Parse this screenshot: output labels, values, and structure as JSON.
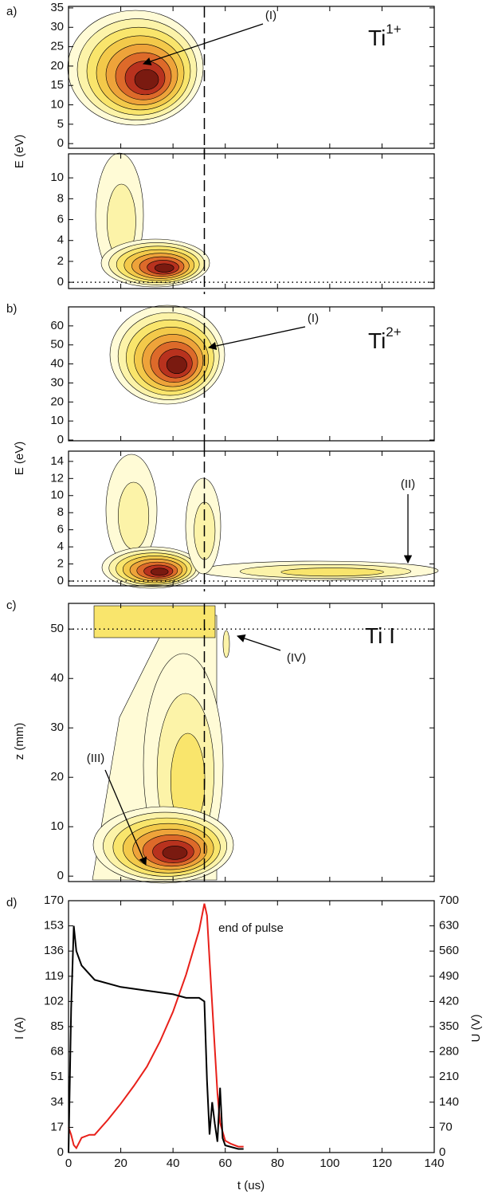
{
  "chart_data": [
    {
      "type": "contour",
      "panel_label": "a)",
      "xlim": [
        0,
        140
      ],
      "ylim": [
        -1.2,
        35.4
      ],
      "yticks": [
        0,
        5,
        10,
        15,
        20,
        25,
        30,
        35
      ],
      "vline": 52,
      "annotations": [
        "(I)"
      ],
      "species": {
        "text": "Ti",
        "sup": "1+"
      }
    },
    {
      "type": "contour",
      "ylabel": "E (eV)",
      "xlim": [
        0,
        140
      ],
      "ylim": [
        -0.6,
        12.3
      ],
      "yticks": [
        0,
        2,
        4,
        6,
        8,
        10
      ],
      "vline": 52,
      "hline": 0
    },
    {
      "type": "contour",
      "panel_label": "b)",
      "xlim": [
        0,
        140
      ],
      "ylim": [
        -0.4,
        70
      ],
      "yticks": [
        0,
        10,
        20,
        30,
        40,
        50,
        60
      ],
      "vline": 52,
      "annotations": [
        "(I)"
      ],
      "species": {
        "text": "Ti",
        "sup": "2+"
      }
    },
    {
      "type": "contour",
      "ylabel": "E (eV)",
      "xlim": [
        0,
        140
      ],
      "ylim": [
        -0.56,
        15.2
      ],
      "yticks": [
        0,
        2,
        4,
        6,
        8,
        10,
        12,
        14
      ],
      "vline": 52,
      "hline": 0,
      "annotations": [
        "(II)"
      ]
    },
    {
      "type": "contour",
      "panel_label": "c)",
      "ylabel": "z (mm)",
      "xlim": [
        0,
        140
      ],
      "ylim": [
        -1.1,
        55.2
      ],
      "yticks": [
        0,
        10,
        20,
        30,
        40,
        50
      ],
      "vline": 52,
      "hline": 50,
      "annotations": [
        "(IV)",
        "(III)"
      ],
      "species": {
        "text": "Ti I"
      }
    },
    {
      "type": "line",
      "panel_label": "d)",
      "xlabel": "t (us)",
      "ylabel": "I (A)",
      "y2label": "U (V)",
      "xlim": [
        0,
        140
      ],
      "xticks": [
        0,
        20,
        40,
        60,
        80,
        100,
        120,
        140
      ],
      "ylim": [
        0,
        170
      ],
      "yticks": [
        0,
        17,
        34,
        51,
        68,
        85,
        102,
        119,
        136,
        153,
        170
      ],
      "y2lim": [
        0,
        700
      ],
      "y2ticks": [
        0,
        70,
        140,
        210,
        280,
        350,
        420,
        490,
        560,
        630,
        700
      ],
      "annotations": [
        "end of pulse"
      ],
      "series": [
        {
          "name": "I",
          "color": "#e8201a",
          "x": [
            0,
            1,
            2,
            3,
            5,
            8,
            10,
            15,
            20,
            25,
            30,
            35,
            40,
            45,
            50,
            52,
            53,
            54,
            55,
            56,
            57,
            58,
            60,
            62,
            65,
            67
          ],
          "values": [
            17,
            12,
            5,
            3,
            10,
            12,
            12,
            22,
            33,
            45,
            58,
            75,
            95,
            120,
            150,
            168,
            160,
            130,
            100,
            70,
            40,
            20,
            8,
            6,
            4,
            4
          ]
        },
        {
          "name": "U",
          "color": "#000000",
          "axis": "y2",
          "x": [
            0,
            1,
            2,
            3,
            5,
            10,
            20,
            30,
            40,
            45,
            50,
            52,
            53,
            54,
            55,
            56,
            57,
            58,
            59,
            60,
            65,
            67
          ],
          "values": [
            0,
            400,
            630,
            560,
            520,
            480,
            460,
            450,
            440,
            430,
            430,
            420,
            200,
            50,
            140,
            80,
            30,
            180,
            40,
            20,
            10,
            10
          ]
        }
      ]
    }
  ]
}
